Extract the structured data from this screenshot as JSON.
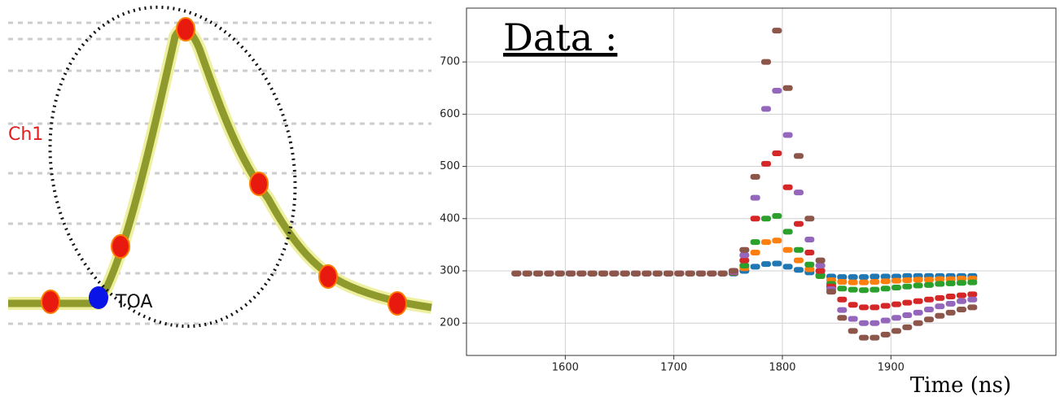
{
  "diagram": {
    "channel_label": "Ch1",
    "marker_label": "TOA"
  },
  "chart_data": {
    "type": "scatter",
    "title": "Data :",
    "xlabel": "Time (ns)",
    "grid": true,
    "xlim": [
      1509,
      2052
    ],
    "ylim": [
      138,
      803
    ],
    "xticks": [
      1600,
      1700,
      1800,
      1900
    ],
    "yticks": [
      200,
      300,
      400,
      500,
      600,
      700
    ],
    "x": [
      1555,
      1565,
      1575,
      1585,
      1595,
      1605,
      1615,
      1625,
      1635,
      1645,
      1655,
      1665,
      1675,
      1685,
      1695,
      1705,
      1715,
      1725,
      1735,
      1745,
      1755,
      1765,
      1775,
      1785,
      1795,
      1805,
      1815,
      1825,
      1835,
      1845,
      1855,
      1865,
      1875,
      1885,
      1895,
      1905,
      1915,
      1925,
      1935,
      1945,
      1955,
      1965,
      1975
    ],
    "series": [
      {
        "color": "#1f77b4",
        "values": [
          295,
          295,
          295,
          295,
          295,
          295,
          295,
          295,
          295,
          295,
          295,
          295,
          295,
          295,
          295,
          295,
          295,
          295,
          295,
          295,
          295,
          300,
          308,
          313,
          314,
          308,
          302,
          297,
          292,
          289,
          288,
          288,
          288,
          289,
          289,
          289,
          290,
          290,
          290,
          290,
          290,
          290,
          290
        ]
      },
      {
        "color": "#ff7f0e",
        "values": [
          295,
          295,
          295,
          295,
          295,
          295,
          295,
          295,
          295,
          295,
          295,
          295,
          295,
          295,
          295,
          295,
          295,
          295,
          295,
          295,
          296,
          305,
          335,
          355,
          358,
          340,
          320,
          303,
          290,
          282,
          279,
          278,
          278,
          279,
          280,
          281,
          282,
          283,
          283,
          284,
          284,
          285,
          285
        ]
      },
      {
        "color": "#2ca02c",
        "values": [
          295,
          295,
          295,
          295,
          295,
          295,
          295,
          295,
          295,
          295,
          295,
          295,
          295,
          295,
          295,
          295,
          295,
          295,
          295,
          295,
          296,
          310,
          355,
          400,
          405,
          375,
          340,
          312,
          290,
          275,
          266,
          264,
          263,
          264,
          266,
          268,
          270,
          272,
          273,
          275,
          276,
          277,
          278
        ]
      },
      {
        "color": "#d62728",
        "values": [
          295,
          295,
          295,
          295,
          295,
          295,
          295,
          295,
          295,
          295,
          295,
          295,
          295,
          295,
          295,
          295,
          295,
          295,
          295,
          295,
          297,
          320,
          400,
          505,
          525,
          460,
          390,
          335,
          300,
          270,
          245,
          235,
          230,
          230,
          233,
          236,
          239,
          242,
          245,
          248,
          251,
          253,
          255
        ]
      },
      {
        "color": "#9467bd",
        "values": [
          295,
          295,
          295,
          295,
          295,
          295,
          295,
          295,
          295,
          295,
          295,
          295,
          295,
          295,
          295,
          295,
          295,
          295,
          295,
          295,
          298,
          330,
          440,
          610,
          645,
          560,
          450,
          360,
          310,
          265,
          225,
          208,
          200,
          200,
          205,
          210,
          215,
          220,
          226,
          232,
          237,
          242,
          245
        ]
      },
      {
        "color": "#8c564b",
        "values": [
          295,
          295,
          295,
          295,
          295,
          295,
          295,
          295,
          295,
          295,
          295,
          295,
          295,
          295,
          295,
          295,
          295,
          295,
          295,
          295,
          300,
          340,
          480,
          700,
          760,
          650,
          520,
          400,
          320,
          260,
          210,
          185,
          172,
          172,
          178,
          185,
          192,
          200,
          207,
          214,
          220,
          226,
          230
        ]
      }
    ]
  }
}
